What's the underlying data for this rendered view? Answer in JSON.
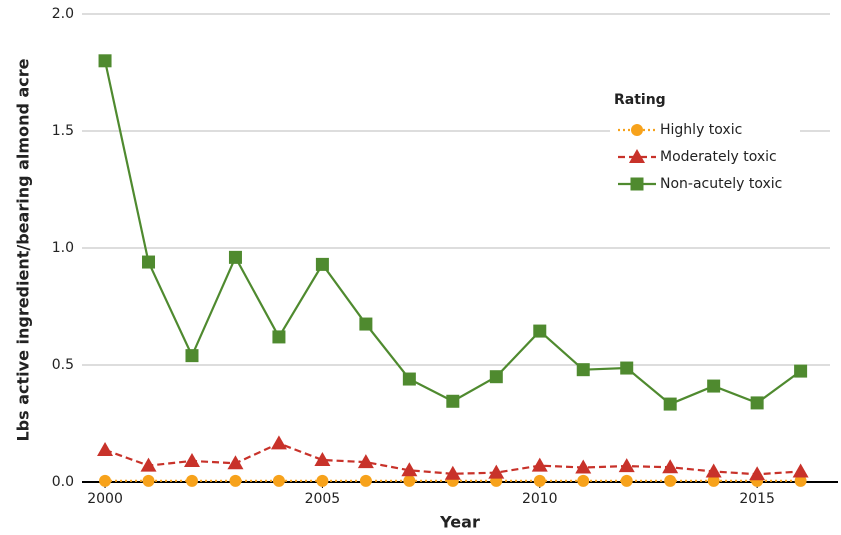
{
  "chart_data": {
    "type": "line",
    "x_label": "Year",
    "y_label": "Lbs active ingredient/bearing almond acre",
    "legend_title": "Rating",
    "x": [
      2000,
      2001,
      2002,
      2003,
      2004,
      2005,
      2006,
      2007,
      2008,
      2009,
      2010,
      2011,
      2012,
      2013,
      2014,
      2015,
      2016
    ],
    "series": [
      {
        "name": "Highly toxic",
        "color": "#f7a21b",
        "dash": "dotted",
        "marker": "circle",
        "values": [
          0.005,
          0.005,
          0.005,
          0.005,
          0.005,
          0.005,
          0.005,
          0.005,
          0.005,
          0.005,
          0.005,
          0.005,
          0.005,
          0.005,
          0.005,
          0.005,
          0.005
        ]
      },
      {
        "name": "Moderately toxic",
        "color": "#c8322a",
        "dash": "dashed",
        "marker": "triangle",
        "values": [
          0.137,
          0.07,
          0.09,
          0.08,
          0.165,
          0.094,
          0.085,
          0.05,
          0.035,
          0.04,
          0.07,
          0.062,
          0.068,
          0.063,
          0.045,
          0.033,
          0.045
        ]
      },
      {
        "name": "Non-acutely toxic",
        "color": "#4f8a2f",
        "dash": "solid",
        "marker": "square",
        "values": [
          1.8,
          0.94,
          0.54,
          0.96,
          0.62,
          0.93,
          0.675,
          0.44,
          0.345,
          0.45,
          0.645,
          0.48,
          0.487,
          0.333,
          0.41,
          0.338,
          0.474
        ]
      }
    ],
    "xlim": [
      1999.47,
      2016.86
    ],
    "xticks": [
      2000,
      2005,
      2010,
      2015
    ],
    "ylim": [
      0,
      2.0
    ],
    "yticks": [
      {
        "value": 0,
        "label": "0.0"
      },
      {
        "value": 0.5,
        "label": "0.5"
      },
      {
        "value": 1.0,
        "label": "1.0"
      },
      {
        "value": 1.5,
        "label": "1.5"
      },
      {
        "value": 2.0,
        "label": "2.0"
      }
    ],
    "grid": true,
    "legend": "upper right"
  }
}
